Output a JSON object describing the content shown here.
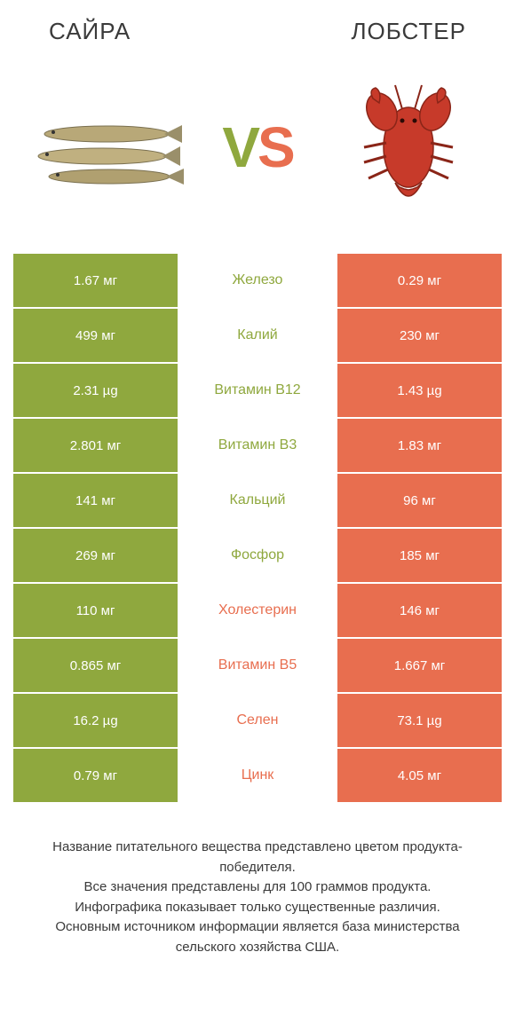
{
  "header": {
    "left_title": "САЙРА",
    "right_title": "ЛОБСТЕР"
  },
  "vs": {
    "v": "V",
    "s": "S"
  },
  "colors": {
    "green": "#8fa83e",
    "orange": "#e86e4f",
    "text": "#3a3a3a",
    "white": "#ffffff"
  },
  "comparison": {
    "type": "table",
    "rows": [
      {
        "left": "1.67 мг",
        "label": "Железо",
        "right": "0.29 мг",
        "winner": "left"
      },
      {
        "left": "499 мг",
        "label": "Калий",
        "right": "230 мг",
        "winner": "left"
      },
      {
        "left": "2.31 µg",
        "label": "Витамин B12",
        "right": "1.43 µg",
        "winner": "left"
      },
      {
        "left": "2.801 мг",
        "label": "Витамин B3",
        "right": "1.83 мг",
        "winner": "left"
      },
      {
        "left": "141 мг",
        "label": "Кальций",
        "right": "96 мг",
        "winner": "left"
      },
      {
        "left": "269 мг",
        "label": "Фосфор",
        "right": "185 мг",
        "winner": "left"
      },
      {
        "left": "110 мг",
        "label": "Холестерин",
        "right": "146 мг",
        "winner": "right"
      },
      {
        "left": "0.865 мг",
        "label": "Витамин B5",
        "right": "1.667 мг",
        "winner": "right"
      },
      {
        "left": "16.2 µg",
        "label": "Селен",
        "right": "73.1 µg",
        "winner": "right"
      },
      {
        "left": "0.79 мг",
        "label": "Цинк",
        "right": "4.05 мг",
        "winner": "right"
      }
    ]
  },
  "footer": {
    "line1": "Название питательного вещества представлено цветом продукта-победителя.",
    "line2": "Все значения представлены для 100 граммов продукта.",
    "line3": "Инфографика показывает только существенные различия.",
    "line4": "Основным источником информации является база министерства сельского хозяйства США."
  },
  "images": {
    "left_alt": "saury-fish",
    "right_alt": "lobster"
  }
}
